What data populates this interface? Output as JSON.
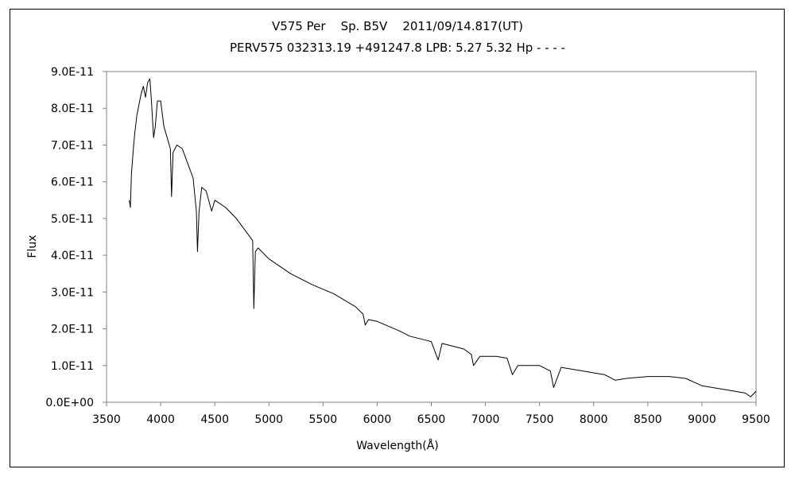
{
  "chart_data": {
    "type": "line",
    "title": "V575 Per    Sp. B5V    2011/09/14.817(UT)",
    "subtitle": "PERV575 032313.19 +491247.8 LPB: 5.27 5.32 Hp - - - -",
    "xlabel": "Wavelength(Å)",
    "ylabel": "Flux",
    "xlim": [
      3500,
      9500
    ],
    "ylim": [
      0,
      9e-11
    ],
    "x_ticks": [
      "3500",
      "4000",
      "4500",
      "5000",
      "5500",
      "6000",
      "6500",
      "7000",
      "7500",
      "8000",
      "8500",
      "9000",
      "9500"
    ],
    "y_ticks": [
      "0.0E+00",
      "1.0E-11",
      "2.0E-11",
      "3.0E-11",
      "4.0E-11",
      "5.0E-11",
      "6.0E-11",
      "7.0E-11",
      "8.0E-11",
      "9.0E-11"
    ],
    "grid": false,
    "series": [
      {
        "x": [
          3710,
          3720,
          3730,
          3745,
          3760,
          3780,
          3800,
          3820,
          3840,
          3860,
          3880,
          3900,
          3915,
          3935,
          3950,
          3970,
          4000,
          4030,
          4060,
          4090,
          4101,
          4115,
          4150,
          4200,
          4250,
          4300,
          4330,
          4340,
          4355,
          4380,
          4420,
          4471,
          4500,
          4600,
          4700,
          4800,
          4850,
          4861,
          4875,
          4900,
          5000,
          5200,
          5400,
          5600,
          5800,
          5870,
          5890,
          5920,
          6000,
          6200,
          6300,
          6500,
          6563,
          6600,
          6800,
          6870,
          6890,
          6950,
          7100,
          7200,
          7250,
          7300,
          7500,
          7600,
          7630,
          7700,
          7800,
          8000,
          8100,
          8200,
          8300,
          8500,
          8700,
          8850,
          9000,
          9200,
          9400,
          9450,
          9500
        ],
        "y": [
          5.5e-11,
          5.3e-11,
          6.2e-11,
          6.8e-11,
          7.3e-11,
          7.8e-11,
          8.1e-11,
          8.4e-11,
          8.6e-11,
          8.3e-11,
          8.7e-11,
          8.8e-11,
          8.2e-11,
          7.2e-11,
          7.5e-11,
          8.2e-11,
          8.2e-11,
          7.5e-11,
          7.2e-11,
          6.9e-11,
          5.6e-11,
          6.8e-11,
          7e-11,
          6.9e-11,
          6.5e-11,
          6.1e-11,
          5.2e-11,
          4.1e-11,
          5.2e-11,
          5.85e-11,
          5.75e-11,
          5.2e-11,
          5.5e-11,
          5.3e-11,
          5e-11,
          4.6e-11,
          4.4e-11,
          2.55e-11,
          4.1e-11,
          4.2e-11,
          3.9e-11,
          3.5e-11,
          3.2e-11,
          2.95e-11,
          2.6e-11,
          2.4e-11,
          2.1e-11,
          2.25e-11,
          2.2e-11,
          1.95e-11,
          1.8e-11,
          1.65e-11,
          1.15e-11,
          1.6e-11,
          1.45e-11,
          1.3e-11,
          1e-11,
          1.25e-11,
          1.25e-11,
          1.2e-11,
          7.5e-12,
          1e-11,
          1e-11,
          8.5e-12,
          4e-12,
          9.5e-12,
          9e-12,
          8e-12,
          7.5e-12,
          6e-12,
          6.5e-12,
          7e-12,
          7e-12,
          6.5e-12,
          4.5e-12,
          3.5e-12,
          2.5e-12,
          1.5e-12,
          3e-12
        ]
      }
    ]
  }
}
